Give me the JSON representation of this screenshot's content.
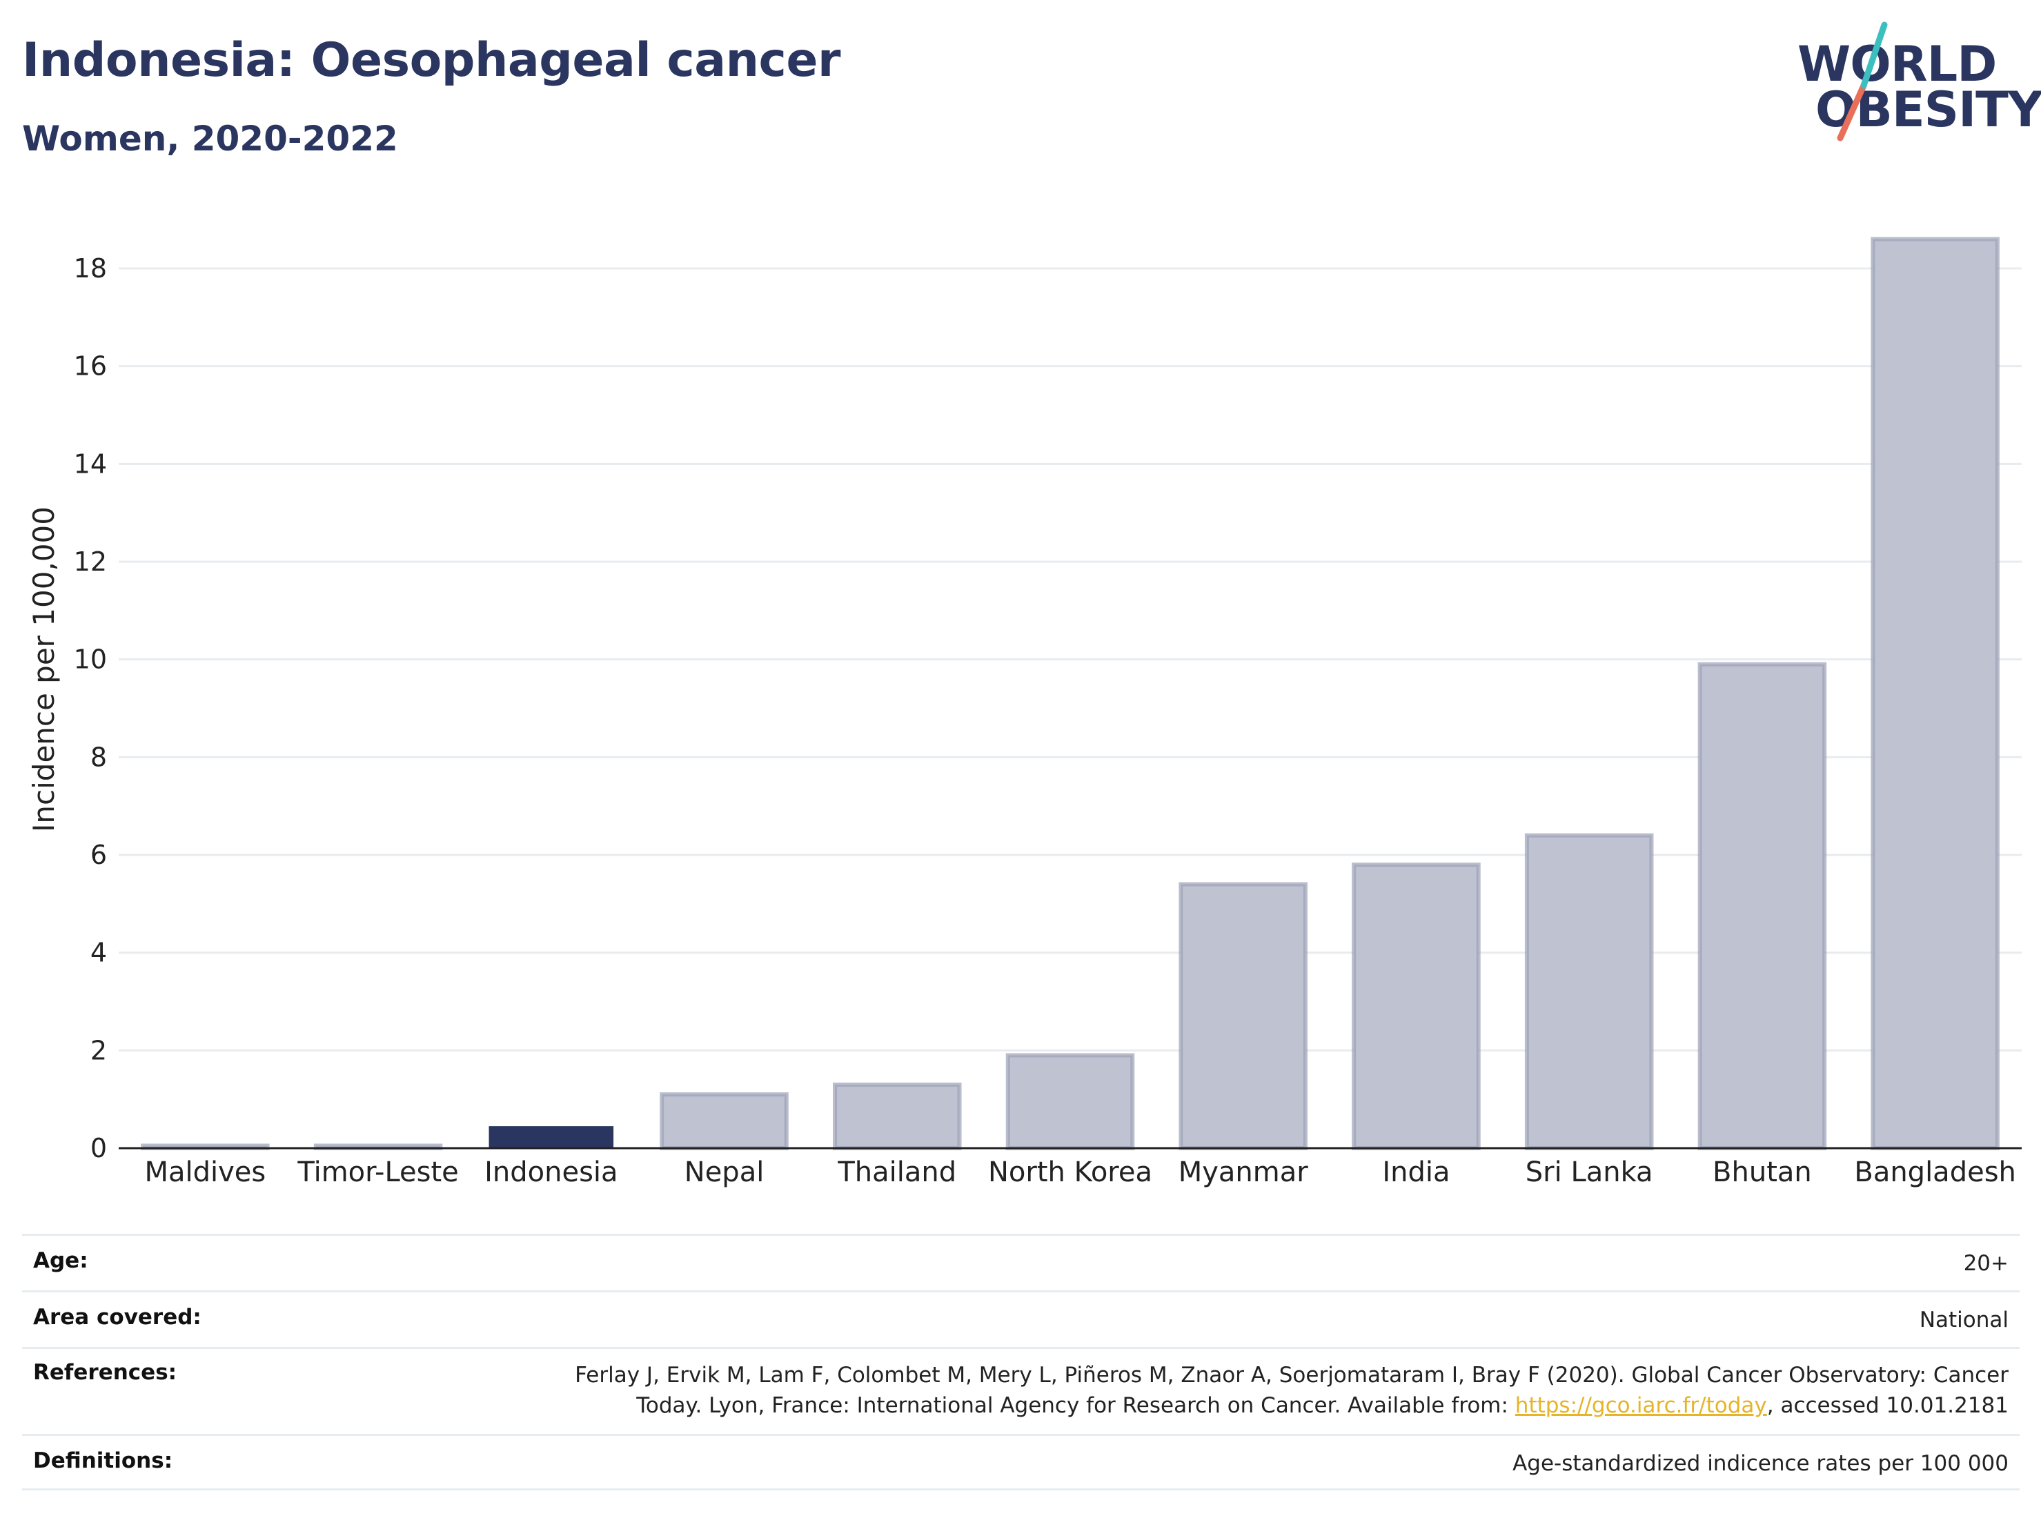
{
  "header": {
    "title": "Indonesia: Oesophageal cancer",
    "subtitle": "Women, 2020-2022",
    "logo_line1": "WORLD",
    "logo_line2": "OBESITY"
  },
  "colors": {
    "highlight_bar": "#2a3560",
    "other_bars": "#bfc3d1",
    "other_bar_border": "#9ba1b7",
    "grid": "#e8ecef",
    "link": "#e6b428",
    "logo_teal": "#3bbfbf",
    "logo_coral": "#e8705a"
  },
  "chart_data": {
    "type": "bar",
    "categories": [
      "Maldives",
      "Timor-Leste",
      "Indonesia",
      "Nepal",
      "Thailand",
      "North Korea",
      "Myanmar",
      "India",
      "Sri Lanka",
      "Bhutan",
      "Bangladesh"
    ],
    "values": [
      0.05,
      0.05,
      0.45,
      1.1,
      1.3,
      1.9,
      5.4,
      5.8,
      6.4,
      9.9,
      18.6
    ],
    "highlight": "Indonesia",
    "ylabel": "Incidence per 100,000",
    "yticks": [
      0,
      2,
      4,
      6,
      8,
      10,
      12,
      14,
      16,
      18
    ],
    "ylim": [
      0,
      19.2
    ],
    "grid": true
  },
  "info": {
    "age_label": "Age:",
    "age_value": "20+",
    "area_label": "Area covered:",
    "area_value": "National",
    "references_label": "References:",
    "references_line1": "Ferlay J, Ervik M, Lam F, Colombet M, Mery L, Piñeros M, Znaor A, Soerjomataram I, Bray F (2020). Global Cancer Observatory: Cancer",
    "references_line2_pre": "Today. Lyon, France: International Agency for Research on Cancer. Available from: ",
    "references_link": "https://gco.iarc.fr/today",
    "references_line2_post": ", accessed 10.01.2181",
    "definitions_label": "Definitions:",
    "definitions_value": "Age-standardized indicence rates per 100 000"
  }
}
